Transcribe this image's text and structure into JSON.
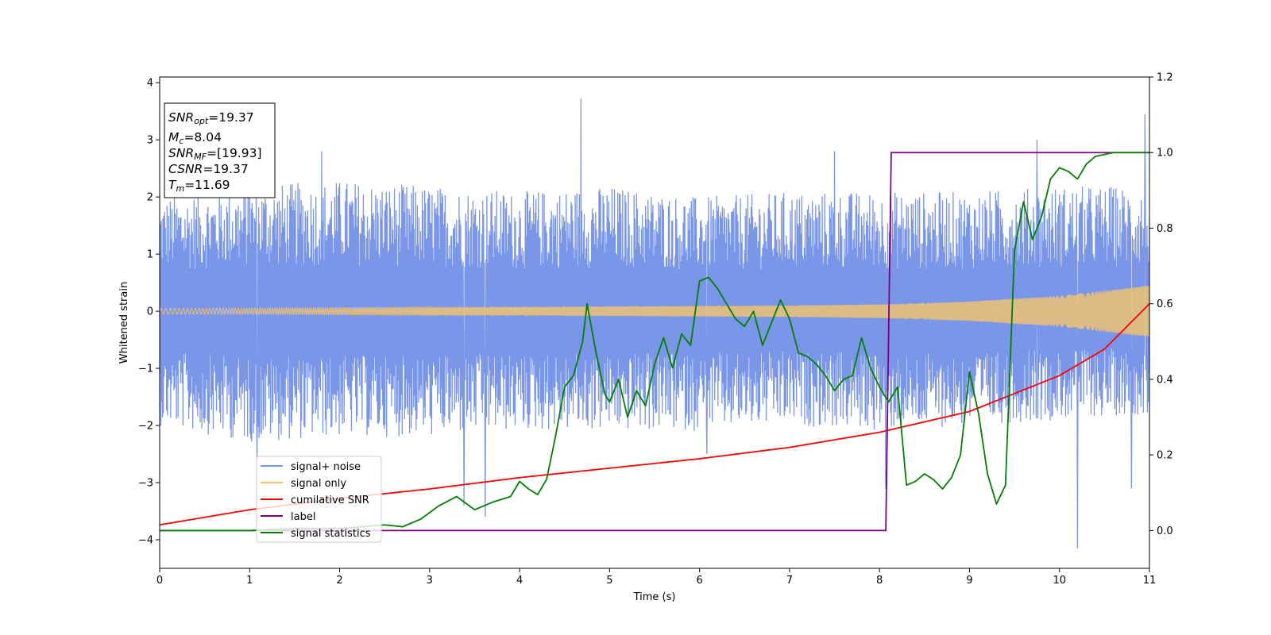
{
  "chart_data": {
    "type": "line",
    "xlabel": "Time (s)",
    "ylabel": "Whitened strain",
    "y2label": "",
    "xlim": [
      0,
      11
    ],
    "ylim": [
      -4.5,
      4.1
    ],
    "y2lim": [
      -0.1,
      1.2
    ],
    "x_ticks": [
      0,
      1,
      2,
      3,
      4,
      5,
      6,
      7,
      8,
      9,
      10,
      11
    ],
    "y_ticks": [
      -4,
      -3,
      -2,
      -1,
      0,
      1,
      2,
      3,
      4
    ],
    "y2_ticks": [
      0.0,
      0.2,
      0.4,
      0.6,
      0.8,
      1.0,
      1.2
    ],
    "y_tick_labels": [
      "−4",
      "−3",
      "−2",
      "−1",
      "0",
      "1",
      "2",
      "3",
      "4"
    ],
    "y2_tick_labels": [
      "0.0",
      "0.2",
      "0.4",
      "0.6",
      "0.8",
      "1.0",
      "1.2"
    ],
    "grid": false,
    "legend_placement": "lower-left",
    "annotation_box": [
      {
        "symbol": "SNR",
        "sub": "opt",
        "value": "=19.37"
      },
      {
        "symbol": "M",
        "sub": "c",
        "value": "=8.04"
      },
      {
        "symbol": "SNR",
        "sub": "MF",
        "value": "=[19.93]"
      },
      {
        "symbol": "CSNR",
        "sub": "",
        "value": "=19.37"
      },
      {
        "symbol": "T",
        "sub": "m",
        "value": "=11.69"
      }
    ],
    "series": [
      {
        "name": "signal+ noise",
        "axis": "left",
        "color": "#7a96e8",
        "style": "dense noise trace",
        "envelope_lower": [
          [
            0,
            -2.0
          ],
          [
            1,
            -2.3
          ],
          [
            2,
            -2.2
          ],
          [
            3,
            -2.2
          ],
          [
            4,
            -2.1
          ],
          [
            5,
            -2.1
          ],
          [
            6,
            -2.1
          ],
          [
            7,
            -2.0
          ],
          [
            8,
            -2.1
          ],
          [
            9,
            -2.0
          ],
          [
            10,
            -1.9
          ],
          [
            11,
            -1.8
          ]
        ],
        "envelope_upper": [
          [
            0,
            2.0
          ],
          [
            1,
            2.2
          ],
          [
            2,
            2.3
          ],
          [
            3,
            2.2
          ],
          [
            4,
            2.1
          ],
          [
            5,
            2.2
          ],
          [
            6,
            2.0
          ],
          [
            7,
            2.1
          ],
          [
            8,
            2.1
          ],
          [
            9,
            2.1
          ],
          [
            10,
            2.2
          ],
          [
            11,
            2.2
          ]
        ],
        "spikes": [
          [
            1.0,
            2.7
          ],
          [
            1.8,
            2.8
          ],
          [
            1.08,
            -2.6
          ],
          [
            3.38,
            -3.4
          ],
          [
            3.62,
            -3.6
          ],
          [
            4.68,
            3.72
          ],
          [
            6.08,
            -2.5
          ],
          [
            7.5,
            2.8
          ],
          [
            8.07,
            -3.1
          ],
          [
            9.75,
            3.0
          ],
          [
            10.2,
            -4.15
          ],
          [
            10.8,
            -3.1
          ],
          [
            10.95,
            3.45
          ]
        ]
      },
      {
        "name": "signal only",
        "axis": "left",
        "color": "#f5c46a",
        "style": "chirp",
        "amplitude": [
          [
            0,
            0.05
          ],
          [
            4,
            0.07
          ],
          [
            7,
            0.1
          ],
          [
            8,
            0.12
          ],
          [
            9,
            0.17
          ],
          [
            10,
            0.27
          ],
          [
            11,
            0.45
          ]
        ]
      },
      {
        "name": "cumilative SNR",
        "axis": "right",
        "color": "#ff0000",
        "points": [
          [
            0,
            0.015
          ],
          [
            1,
            0.055
          ],
          [
            2,
            0.085
          ],
          [
            3,
            0.11
          ],
          [
            4,
            0.14
          ],
          [
            5,
            0.165
          ],
          [
            6,
            0.19
          ],
          [
            7,
            0.22
          ],
          [
            8,
            0.26
          ],
          [
            9,
            0.315
          ],
          [
            10,
            0.41
          ],
          [
            10.5,
            0.48
          ],
          [
            11,
            0.6
          ]
        ]
      },
      {
        "name": "label",
        "axis": "right",
        "color": "#800080",
        "points": [
          [
            0,
            0.0
          ],
          [
            8.07,
            0.0
          ],
          [
            8.13,
            1.0
          ],
          [
            11,
            1.0
          ]
        ]
      },
      {
        "name": "signal statistics",
        "axis": "right",
        "color": "#008000",
        "points": [
          [
            0,
            0.0
          ],
          [
            1,
            0.0
          ],
          [
            1.5,
            0.005
          ],
          [
            2,
            0.005
          ],
          [
            2.5,
            0.015
          ],
          [
            2.7,
            0.01
          ],
          [
            2.9,
            0.03
          ],
          [
            3.1,
            0.065
          ],
          [
            3.3,
            0.09
          ],
          [
            3.5,
            0.055
          ],
          [
            3.7,
            0.075
          ],
          [
            3.9,
            0.09
          ],
          [
            4.0,
            0.13
          ],
          [
            4.1,
            0.11
          ],
          [
            4.2,
            0.095
          ],
          [
            4.3,
            0.135
          ],
          [
            4.4,
            0.25
          ],
          [
            4.5,
            0.38
          ],
          [
            4.6,
            0.41
          ],
          [
            4.7,
            0.5
          ],
          [
            4.75,
            0.6
          ],
          [
            4.85,
            0.47
          ],
          [
            4.95,
            0.36
          ],
          [
            5.0,
            0.34
          ],
          [
            5.1,
            0.4
          ],
          [
            5.2,
            0.3
          ],
          [
            5.3,
            0.37
          ],
          [
            5.4,
            0.33
          ],
          [
            5.5,
            0.44
          ],
          [
            5.6,
            0.51
          ],
          [
            5.7,
            0.43
          ],
          [
            5.8,
            0.52
          ],
          [
            5.9,
            0.49
          ],
          [
            6.0,
            0.66
          ],
          [
            6.1,
            0.67
          ],
          [
            6.2,
            0.64
          ],
          [
            6.3,
            0.6
          ],
          [
            6.4,
            0.56
          ],
          [
            6.5,
            0.54
          ],
          [
            6.6,
            0.58
          ],
          [
            6.7,
            0.49
          ],
          [
            6.8,
            0.55
          ],
          [
            6.9,
            0.61
          ],
          [
            7.0,
            0.56
          ],
          [
            7.1,
            0.47
          ],
          [
            7.2,
            0.46
          ],
          [
            7.3,
            0.44
          ],
          [
            7.4,
            0.41
          ],
          [
            7.5,
            0.37
          ],
          [
            7.6,
            0.4
          ],
          [
            7.7,
            0.41
          ],
          [
            7.8,
            0.51
          ],
          [
            7.9,
            0.43
          ],
          [
            8.0,
            0.38
          ],
          [
            8.1,
            0.34
          ],
          [
            8.2,
            0.38
          ],
          [
            8.3,
            0.12
          ],
          [
            8.4,
            0.13
          ],
          [
            8.5,
            0.15
          ],
          [
            8.6,
            0.135
          ],
          [
            8.7,
            0.11
          ],
          [
            8.8,
            0.14
          ],
          [
            8.9,
            0.2
          ],
          [
            9.0,
            0.42
          ],
          [
            9.1,
            0.31
          ],
          [
            9.2,
            0.15
          ],
          [
            9.3,
            0.07
          ],
          [
            9.4,
            0.12
          ],
          [
            9.5,
            0.74
          ],
          [
            9.6,
            0.87
          ],
          [
            9.7,
            0.77
          ],
          [
            9.8,
            0.83
          ],
          [
            9.9,
            0.93
          ],
          [
            10.0,
            0.96
          ],
          [
            10.1,
            0.95
          ],
          [
            10.2,
            0.93
          ],
          [
            10.3,
            0.97
          ],
          [
            10.4,
            0.99
          ],
          [
            10.6,
            1.0
          ],
          [
            11,
            1.0
          ]
        ]
      }
    ]
  }
}
